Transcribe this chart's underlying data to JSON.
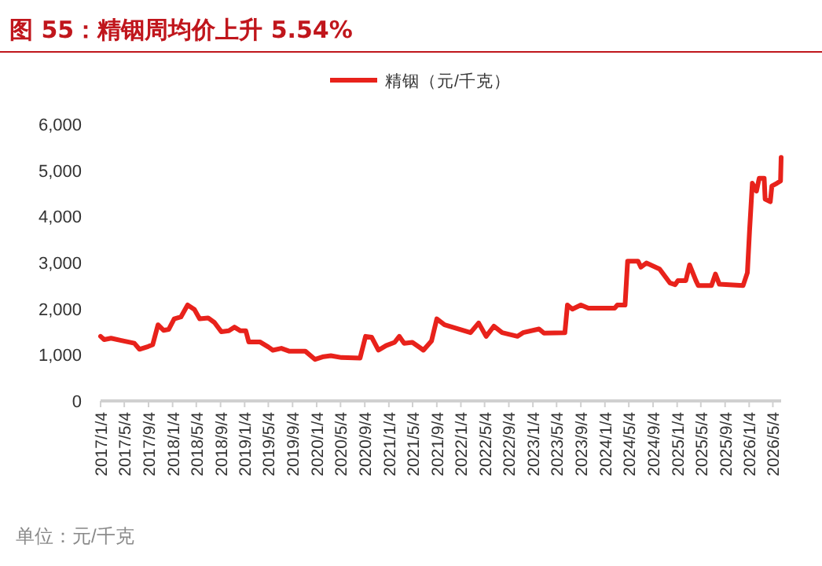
{
  "chart_data": {
    "type": "line",
    "title": "图 55：精铟周均价上升 5.54%",
    "annotations": [
      "单位：元/千克"
    ],
    "legend": "top",
    "grid": false,
    "marker": "none",
    "line_style": "solid",
    "xlim": [
      "2017-01-04",
      "2026-06-15"
    ],
    "xticks": [
      {
        "value": "2017-01-04",
        "label": "2017/1/4"
      },
      {
        "value": "2017-05-04",
        "label": "2017/5/4"
      },
      {
        "value": "2017-09-04",
        "label": "2017/9/4"
      },
      {
        "value": "2018-01-04",
        "label": "2018/1/4"
      },
      {
        "value": "2018-05-04",
        "label": "2018/5/4"
      },
      {
        "value": "2018-09-04",
        "label": "2018/9/4"
      },
      {
        "value": "2019-01-04",
        "label": "2019/1/4"
      },
      {
        "value": "2019-05-04",
        "label": "2019/5/4"
      },
      {
        "value": "2019-09-04",
        "label": "2019/9/4"
      },
      {
        "value": "2020-01-04",
        "label": "2020/1/4"
      },
      {
        "value": "2020-05-04",
        "label": "2020/5/4"
      },
      {
        "value": "2020-09-04",
        "label": "2020/9/4"
      },
      {
        "value": "2021-01-04",
        "label": "2021/1/4"
      },
      {
        "value": "2021-05-04",
        "label": "2021/5/4"
      },
      {
        "value": "2021-09-04",
        "label": "2021/9/4"
      },
      {
        "value": "2022-01-04",
        "label": "2022/1/4"
      },
      {
        "value": "2022-05-04",
        "label": "2022/5/4"
      },
      {
        "value": "2022-09-04",
        "label": "2022/9/4"
      },
      {
        "value": "2023-01-04",
        "label": "2023/1/4"
      },
      {
        "value": "2023-05-04",
        "label": "2023/5/4"
      },
      {
        "value": "2023-09-04",
        "label": "2023/9/4"
      },
      {
        "value": "2024-01-04",
        "label": "2024/1/4"
      },
      {
        "value": "2024-05-04",
        "label": "2024/5/4"
      },
      {
        "value": "2024-09-04",
        "label": "2024/9/4"
      },
      {
        "value": "2025-01-04",
        "label": "2025/1/4"
      },
      {
        "value": "2025-05-04",
        "label": "2025/5/4"
      },
      {
        "value": "2025-09-04",
        "label": "2025/9/4"
      },
      {
        "value": "2026-01-04",
        "label": "2026/1/4"
      },
      {
        "value": "2026-05-04",
        "label": "2026/5/4"
      }
    ],
    "ylim": [
      0,
      6000
    ],
    "yticks": [
      {
        "value": 0,
        "label": "0"
      },
      {
        "value": 1000,
        "label": "1,000"
      },
      {
        "value": 2000,
        "label": "2,000"
      },
      {
        "value": 3000,
        "label": "3,000"
      },
      {
        "value": 4000,
        "label": "4,000"
      },
      {
        "value": 5000,
        "label": "5,000"
      },
      {
        "value": 6000,
        "label": "6,000"
      }
    ],
    "series": [
      {
        "name": "精铟（元/千克）",
        "color": "#e8221b",
        "x": [
          "2017-01-04",
          "2017-01-22",
          "2017-02-26",
          "2017-04-19",
          "2017-06-24",
          "2017-07-20",
          "2017-09-02",
          "2017-09-25",
          "2017-10-22",
          "2017-11-19",
          "2017-12-15",
          "2018-01-12",
          "2018-02-15",
          "2018-03-21",
          "2018-04-25",
          "2018-05-21",
          "2018-07-03",
          "2018-08-04",
          "2018-09-08",
          "2018-10-16",
          "2018-11-13",
          "2018-12-14",
          "2019-01-10",
          "2019-01-25",
          "2019-03-22",
          "2019-05-04",
          "2019-05-27",
          "2019-07-09",
          "2019-08-17",
          "2019-11-07",
          "2019-12-27",
          "2020-02-08",
          "2020-03-16",
          "2020-05-09",
          "2020-08-11",
          "2020-09-08",
          "2020-10-09",
          "2020-11-12",
          "2020-12-21",
          "2021-02-02",
          "2021-02-26",
          "2021-03-22",
          "2021-05-03",
          "2021-06-12",
          "2021-06-28",
          "2021-08-08",
          "2021-09-04",
          "2021-10-13",
          "2022-02-22",
          "2022-04-04",
          "2022-05-12",
          "2022-06-20",
          "2022-08-01",
          "2022-10-18",
          "2022-11-15",
          "2023-02-04",
          "2023-03-01",
          "2023-06-15",
          "2023-06-28",
          "2023-07-23",
          "2023-09-04",
          "2023-10-12",
          "2024-02-22",
          "2024-03-07",
          "2024-04-15",
          "2024-04-28",
          "2024-06-20",
          "2024-07-04",
          "2024-08-01",
          "2024-10-07",
          "2024-11-28",
          "2024-12-25",
          "2025-01-08",
          "2025-02-17",
          "2025-03-08",
          "2025-04-09",
          "2025-04-21",
          "2025-06-27",
          "2025-07-17",
          "2025-08-06",
          "2025-12-04",
          "2025-12-26",
          "2026-01-06",
          "2026-01-20",
          "2026-02-10",
          "2026-02-24",
          "2026-03-21",
          "2026-03-26",
          "2026-04-21",
          "2026-04-29",
          "2026-05-25",
          "2026-06-12",
          "2026-06-15"
        ],
        "values": [
          1400,
          1330,
          1360,
          1310,
          1250,
          1120,
          1180,
          1220,
          1650,
          1530,
          1550,
          1780,
          1820,
          2080,
          1980,
          1780,
          1800,
          1700,
          1500,
          1520,
          1600,
          1520,
          1520,
          1280,
          1280,
          1170,
          1100,
          1140,
          1080,
          1080,
          900,
          960,
          980,
          940,
          930,
          1400,
          1380,
          1100,
          1200,
          1270,
          1400,
          1250,
          1270,
          1150,
          1100,
          1300,
          1780,
          1650,
          1480,
          1690,
          1400,
          1620,
          1480,
          1400,
          1480,
          1560,
          1470,
          1480,
          2080,
          1990,
          2080,
          2010,
          2010,
          2080,
          2080,
          3030,
          3030,
          2900,
          2990,
          2860,
          2560,
          2520,
          2610,
          2610,
          2950,
          2610,
          2500,
          2500,
          2750,
          2530,
          2500,
          2780,
          3690,
          4720,
          4550,
          4830,
          4830,
          4375,
          4320,
          4660,
          4720,
          4770,
          5280
        ]
      }
    ]
  }
}
